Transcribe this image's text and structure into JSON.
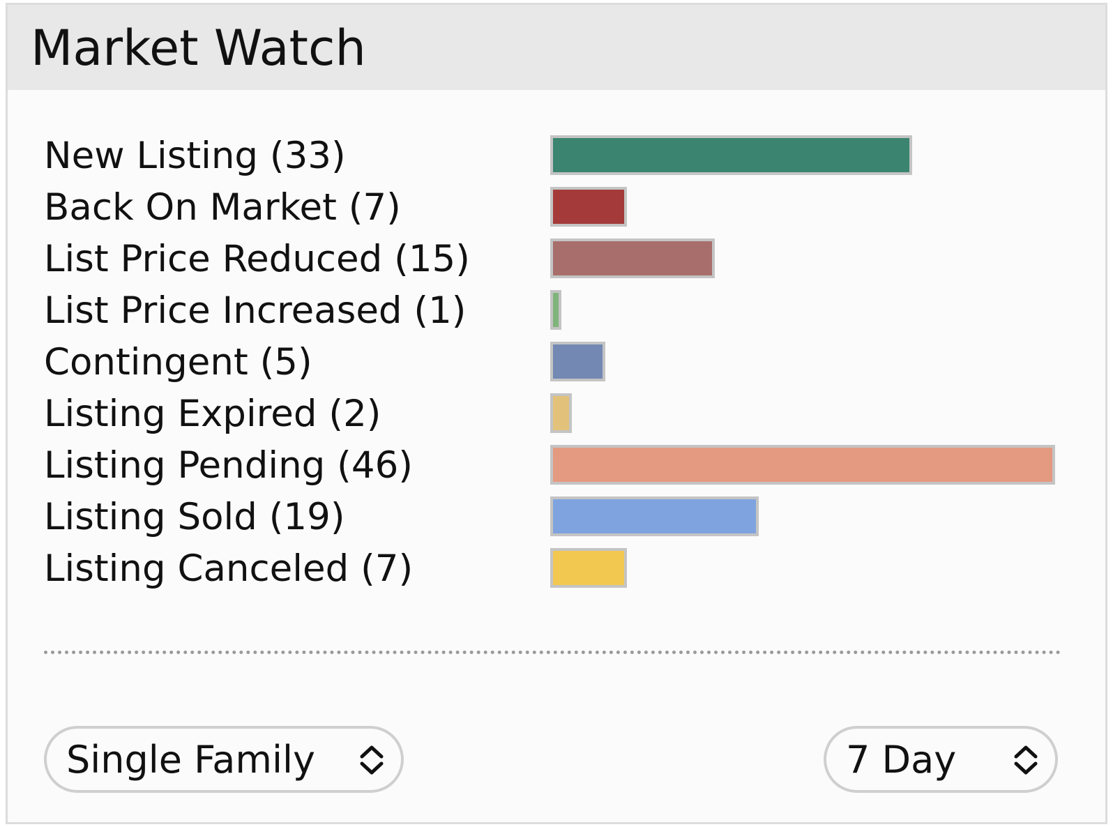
{
  "panel": {
    "title": "Market Watch"
  },
  "stats": [
    {
      "label": "New Listing (33)",
      "value": 33,
      "color": "#3b8470"
    },
    {
      "label": "Back On Market (7)",
      "value": 7,
      "color": "#a43a39"
    },
    {
      "label": "List Price Reduced (15)",
      "value": 15,
      "color": "#a76e6b"
    },
    {
      "label": "List Price Increased (1)",
      "value": 1,
      "color": "#7fb47a"
    },
    {
      "label": "Contingent (5)",
      "value": 5,
      "color": "#7389b4"
    },
    {
      "label": "Listing Expired (2)",
      "value": 2,
      "color": "#e2c27a"
    },
    {
      "label": "Listing Pending (46)",
      "value": 46,
      "color": "#e49a80"
    },
    {
      "label": "Listing Sold (19)",
      "value": 19,
      "color": "#7fa3df"
    },
    {
      "label": "Listing Canceled (7)",
      "value": 7,
      "color": "#f3c851"
    }
  ],
  "controls": {
    "property_type": {
      "value": "Single Family",
      "icon": "updown-chevron-icon"
    },
    "time_range": {
      "value": "7 Day",
      "icon": "updown-chevron-icon"
    }
  }
}
